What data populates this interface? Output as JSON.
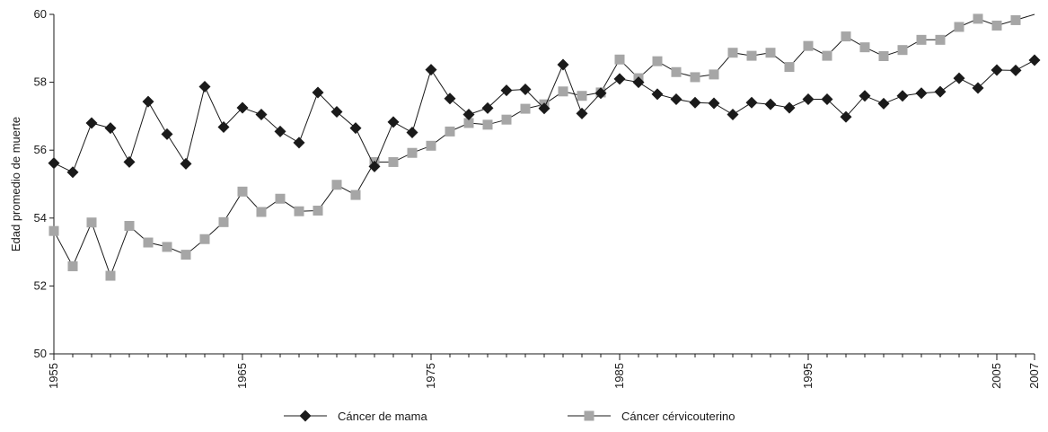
{
  "chart_data": {
    "type": "line",
    "ylabel": "Edad promedio de muerte",
    "xlabel": "",
    "ylim": [
      50,
      60
    ],
    "xlim": [
      1955,
      2007
    ],
    "yticks": [
      "50",
      "52",
      "54",
      "56",
      "58",
      "60"
    ],
    "xticks": [
      "1955",
      "1965",
      "1975",
      "1985",
      "1995",
      "2005",
      "2007"
    ],
    "grid": false,
    "legend_position": "bottom-center",
    "x": [
      1955,
      1956,
      1957,
      1958,
      1959,
      1960,
      1961,
      1962,
      1963,
      1964,
      1965,
      1966,
      1967,
      1968,
      1969,
      1970,
      1971,
      1972,
      1973,
      1974,
      1975,
      1976,
      1977,
      1978,
      1979,
      1980,
      1981,
      1982,
      1983,
      1984,
      1985,
      1986,
      1987,
      1988,
      1989,
      1990,
      1991,
      1992,
      1993,
      1994,
      1995,
      1996,
      1997,
      1998,
      1999,
      2000,
      2001,
      2002,
      2003,
      2004,
      2005,
      2006,
      2007
    ],
    "series": [
      {
        "name": "Cáncer de mama",
        "marker": "diamond",
        "color": "#1a1a1a",
        "values": [
          55.62,
          55.35,
          56.8,
          56.65,
          55.65,
          57.43,
          56.47,
          55.6,
          57.87,
          56.68,
          57.25,
          57.05,
          56.55,
          56.22,
          57.7,
          57.13,
          56.65,
          55.52,
          56.83,
          56.52,
          58.37,
          57.52,
          57.05,
          57.24,
          57.76,
          57.79,
          57.23,
          58.52,
          57.08,
          57.68,
          58.1,
          58.0,
          57.65,
          57.5,
          57.4,
          57.38,
          57.05,
          57.4,
          57.35,
          57.25,
          57.5,
          57.5,
          56.98,
          57.6,
          57.37,
          57.6,
          57.68,
          57.72,
          58.12,
          57.83,
          58.36,
          58.35,
          58.65
        ]
      },
      {
        "name": "Cáncer cérvicouterino",
        "marker": "square",
        "color": "#a6a6a6",
        "values": [
          53.62,
          52.58,
          53.87,
          52.3,
          53.77,
          53.28,
          53.15,
          52.92,
          53.38,
          53.88,
          54.78,
          54.18,
          54.57,
          54.2,
          54.22,
          54.98,
          54.68,
          55.65,
          55.65,
          55.92,
          56.13,
          56.55,
          56.8,
          56.75,
          56.9,
          57.22,
          57.35,
          57.73,
          57.6,
          57.7,
          58.67,
          58.12,
          58.62,
          58.3,
          58.15,
          58.23,
          58.87,
          58.78,
          58.87,
          58.45,
          59.07,
          58.78,
          59.35,
          59.03,
          58.77,
          58.95,
          59.25,
          59.25,
          59.63,
          59.87,
          59.67,
          59.83,
          60.15
        ]
      }
    ]
  }
}
